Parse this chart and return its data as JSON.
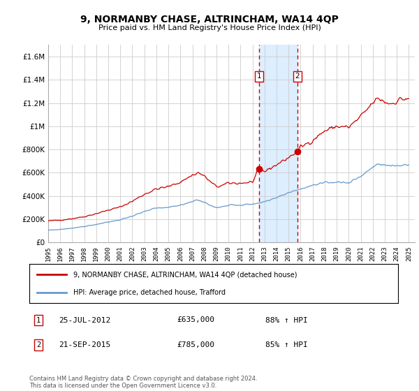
{
  "title": "9, NORMANBY CHASE, ALTRINCHAM, WA14 4QP",
  "subtitle": "Price paid vs. HM Land Registry's House Price Index (HPI)",
  "footer": "Contains HM Land Registry data © Crown copyright and database right 2024.\nThis data is licensed under the Open Government Licence v3.0.",
  "legend_entry1": "9, NORMANBY CHASE, ALTRINCHAM, WA14 4QP (detached house)",
  "legend_entry2": "HPI: Average price, detached house, Trafford",
  "sale1_label": "1",
  "sale1_date": "25-JUL-2012",
  "sale1_price": "£635,000",
  "sale1_hpi": "88% ↑ HPI",
  "sale1_year": 2012.56,
  "sale1_value": 635000,
  "sale2_label": "2",
  "sale2_date": "21-SEP-2015",
  "sale2_price": "£785,000",
  "sale2_hpi": "85% ↑ HPI",
  "sale2_year": 2015.72,
  "sale2_value": 785000,
  "ylim": [
    0,
    1700000
  ],
  "yticks": [
    0,
    200000,
    400000,
    600000,
    800000,
    1000000,
    1200000,
    1400000,
    1600000
  ],
  "ytick_labels": [
    "£0",
    "£200K",
    "£400K",
    "£600K",
    "£800K",
    "£1M",
    "£1.2M",
    "£1.4M",
    "£1.6M"
  ],
  "xmin": 1995,
  "xmax": 2025.5,
  "background_color": "#ffffff",
  "grid_color": "#cccccc",
  "red_line_color": "#cc0000",
  "blue_line_color": "#6699cc",
  "shade_color": "#ddeeff",
  "dashed_line_color": "#cc0000",
  "xtick_years": [
    1995,
    1996,
    1997,
    1998,
    1999,
    2000,
    2001,
    2002,
    2003,
    2004,
    2005,
    2006,
    2007,
    2008,
    2009,
    2010,
    2011,
    2012,
    2013,
    2014,
    2015,
    2016,
    2017,
    2018,
    2019,
    2020,
    2021,
    2022,
    2023,
    2024,
    2025
  ]
}
